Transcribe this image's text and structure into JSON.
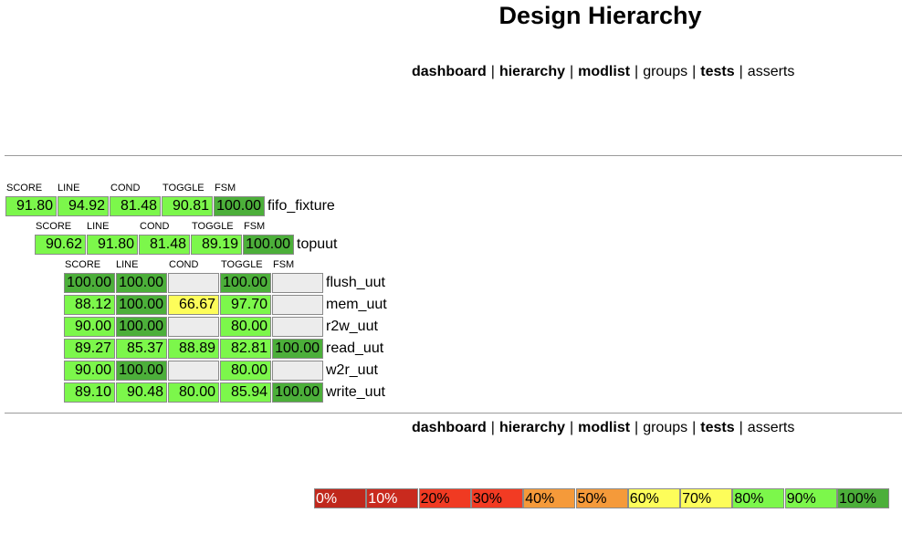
{
  "title": "Design Hierarchy",
  "nav": [
    {
      "label": "dashboard",
      "bold": true
    },
    {
      "label": "hierarchy",
      "bold": true
    },
    {
      "label": "modlist",
      "bold": true
    },
    {
      "label": "groups",
      "bold": false
    },
    {
      "label": "tests",
      "bold": true
    },
    {
      "label": "asserts",
      "bold": false
    }
  ],
  "separator": "|",
  "headers": [
    "SCORE",
    "LINE",
    "COND",
    "TOGGLE",
    "FSM"
  ],
  "colors": {
    "green": "#7cf74b",
    "dark_green": "#4caf3a",
    "yellow": "#fdfd5a",
    "empty": "#ececec"
  },
  "rows": [
    {
      "name": "fifo_fixture",
      "values": [
        "91.80",
        "94.92",
        "81.48",
        "90.81",
        "100.00"
      ],
      "level": [
        "g",
        "g",
        "g",
        "g",
        "d"
      ]
    },
    {
      "name": "topuut",
      "values": [
        "90.62",
        "91.80",
        "81.48",
        "89.19",
        "100.00"
      ],
      "level": [
        "g",
        "g",
        "g",
        "g",
        "d"
      ]
    },
    {
      "name": "flush_uut",
      "values": [
        "100.00",
        "100.00",
        "",
        "100.00",
        ""
      ],
      "level": [
        "d",
        "d",
        "e",
        "d",
        "e"
      ]
    },
    {
      "name": "mem_uut",
      "values": [
        "88.12",
        "100.00",
        "66.67",
        "97.70",
        ""
      ],
      "level": [
        "g",
        "d",
        "y",
        "g",
        "e"
      ]
    },
    {
      "name": "r2w_uut",
      "values": [
        "90.00",
        "100.00",
        "",
        "80.00",
        ""
      ],
      "level": [
        "g",
        "d",
        "e",
        "g",
        "e"
      ]
    },
    {
      "name": "read_uut",
      "values": [
        "89.27",
        "85.37",
        "88.89",
        "82.81",
        "100.00"
      ],
      "level": [
        "g",
        "g",
        "g",
        "g",
        "d"
      ]
    },
    {
      "name": "w2r_uut",
      "values": [
        "90.00",
        "100.00",
        "",
        "80.00",
        ""
      ],
      "level": [
        "g",
        "d",
        "e",
        "g",
        "e"
      ]
    },
    {
      "name": "write_uut",
      "values": [
        "89.10",
        "90.48",
        "80.00",
        "85.94",
        "100.00"
      ],
      "level": [
        "g",
        "g",
        "g",
        "g",
        "d"
      ]
    }
  ],
  "legend": [
    {
      "label": "0%",
      "color": "#c0281c",
      "text": "#ffffff"
    },
    {
      "label": "10%",
      "color": "#c92a1e",
      "text": "#ffffff"
    },
    {
      "label": "20%",
      "color": "#f03a22",
      "text": "#000000"
    },
    {
      "label": "30%",
      "color": "#f23b23",
      "text": "#000000"
    },
    {
      "label": "40%",
      "color": "#f59a3a",
      "text": "#000000"
    },
    {
      "label": "50%",
      "color": "#f59a3a",
      "text": "#000000"
    },
    {
      "label": "60%",
      "color": "#fdfd5a",
      "text": "#000000"
    },
    {
      "label": "70%",
      "color": "#fdfd5a",
      "text": "#000000"
    },
    {
      "label": "80%",
      "color": "#7cf74b",
      "text": "#000000"
    },
    {
      "label": "90%",
      "color": "#7cf74b",
      "text": "#000000"
    },
    {
      "label": "100%",
      "color": "#4caf3a",
      "text": "#000000"
    }
  ]
}
